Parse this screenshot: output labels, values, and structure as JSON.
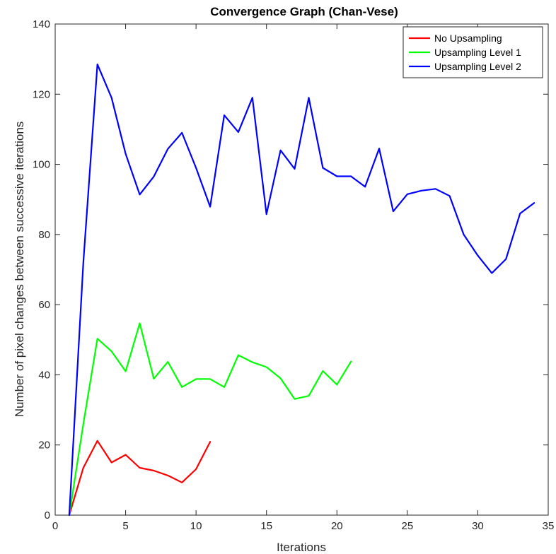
{
  "chart_data": {
    "type": "line",
    "title": "Convergence Graph (Chan-Vese)",
    "xlabel": "Iterations",
    "ylabel": "Number of pixel changes between successive iterations",
    "xlim": [
      0,
      35
    ],
    "ylim": [
      0,
      140
    ],
    "xticks": [
      0,
      5,
      10,
      15,
      20,
      25,
      30,
      35
    ],
    "yticks": [
      0,
      20,
      40,
      60,
      80,
      100,
      120,
      140
    ],
    "grid": false,
    "legend_position": "top-right",
    "series": [
      {
        "name": "No Upsampling",
        "color": "#ff0000",
        "x": [
          1,
          2,
          3,
          4,
          5,
          6,
          7,
          8,
          9,
          10,
          11
        ],
        "y": [
          0,
          13.5,
          21.2,
          15,
          17.2,
          13.5,
          12.7,
          11.3,
          9.3,
          13.1,
          20.9
        ]
      },
      {
        "name": "Upsampling Level 1",
        "color": "#00ff00",
        "x": [
          1,
          2,
          3,
          4,
          5,
          6,
          7,
          8,
          9,
          10,
          11,
          12,
          13,
          14,
          15,
          16,
          17,
          18,
          19,
          20,
          21
        ],
        "y": [
          0,
          26,
          50.3,
          46.7,
          41,
          54.7,
          38.9,
          43.7,
          36.5,
          38.8,
          38.8,
          36.5,
          45.6,
          43.6,
          42.2,
          39,
          33.1,
          34,
          41.1,
          37.2,
          43.8
        ]
      },
      {
        "name": "Upsampling Level 2",
        "color": "#0000ff",
        "x": [
          1,
          2,
          3,
          4,
          5,
          6,
          7,
          8,
          9,
          10,
          11,
          12,
          13,
          14,
          15,
          16,
          17,
          18,
          19,
          20,
          21,
          22,
          23,
          24,
          25,
          26,
          27,
          28,
          29,
          30,
          31,
          32,
          33,
          34
        ],
        "y": [
          0,
          72,
          128.5,
          119,
          103,
          91.4,
          96.5,
          104.4,
          109,
          99,
          87.9,
          114,
          109.2,
          119,
          85.8,
          104,
          98.7,
          119,
          99,
          96.6,
          96.6,
          93.6,
          104.5,
          86.6,
          91.5,
          92.5,
          93,
          91,
          80,
          74,
          69,
          73,
          86,
          89
        ]
      }
    ]
  }
}
